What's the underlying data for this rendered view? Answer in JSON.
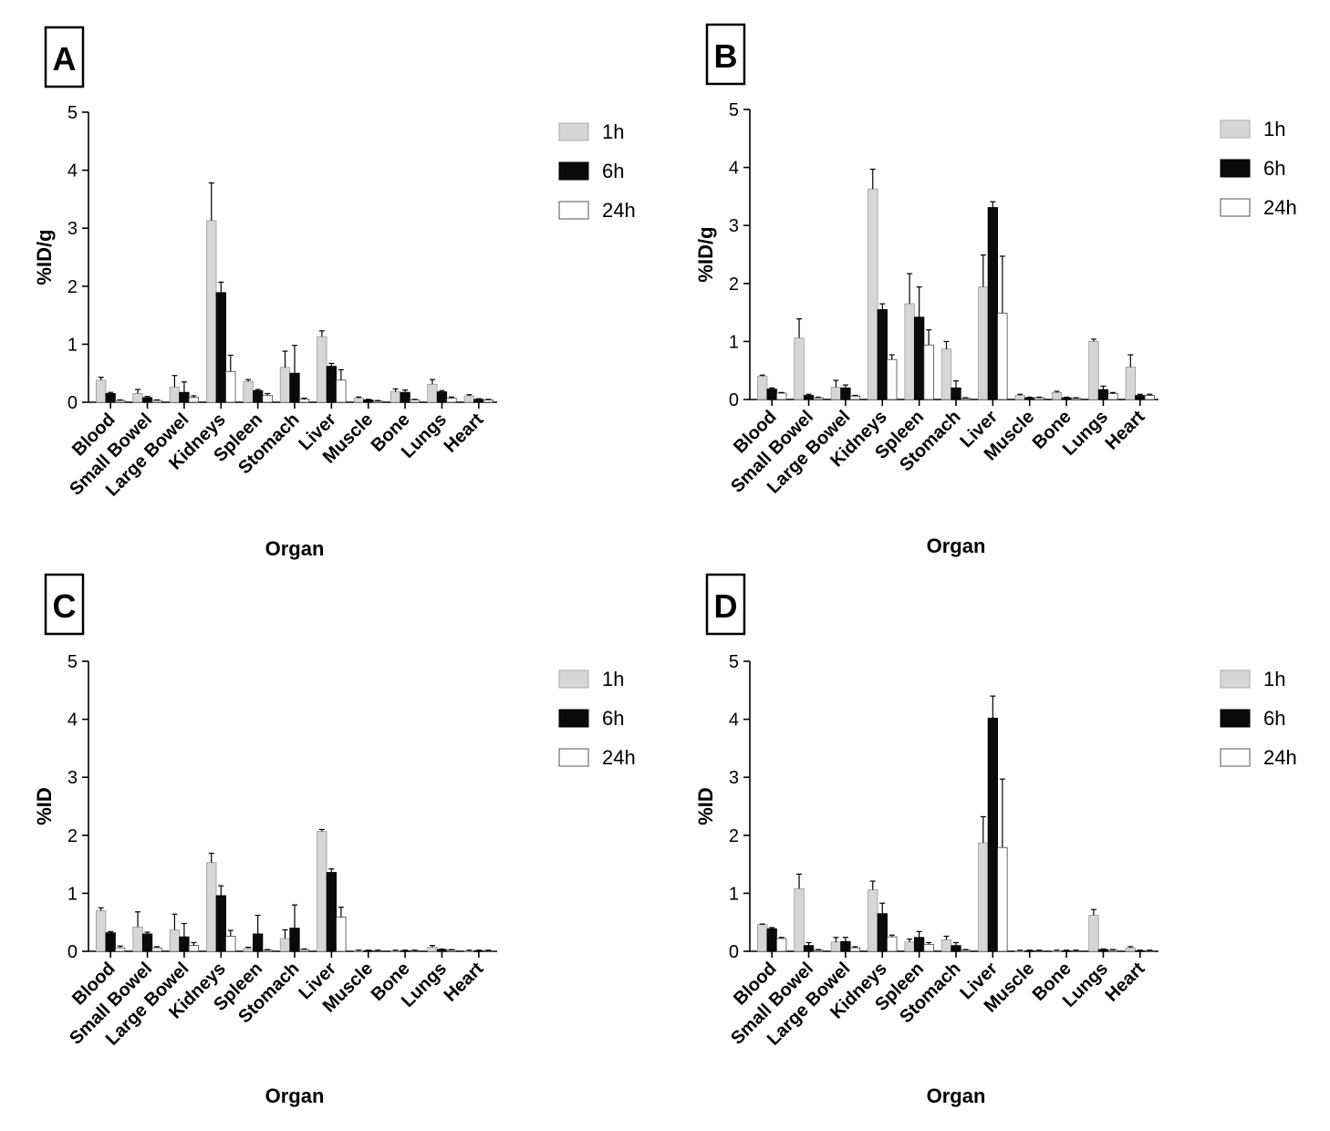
{
  "colors": {
    "1h": "#d6d6d6",
    "6h": "#0a0a0a",
    "24h": "#ffffff",
    "axis": "#000000"
  },
  "chart_data": [
    {
      "panel": "A",
      "type": "bar",
      "title": "",
      "xlabel": "Organ",
      "ylabel": "%ID/g",
      "ylim": [
        0,
        5
      ],
      "yticks": [
        "0",
        "1",
        "2",
        "3",
        "4",
        "5"
      ],
      "legend_position": "top-right",
      "categories": [
        "Blood",
        "Small Bowel",
        "Large Bowel",
        "Kidneys",
        "Spleen",
        "Stomach",
        "Liver",
        "Muscle",
        "Bone",
        "Lungs",
        "Heart"
      ],
      "series": [
        {
          "name": "1h",
          "values": [
            0.38,
            0.15,
            0.26,
            3.13,
            0.36,
            0.6,
            1.13,
            0.07,
            0.18,
            0.31,
            0.11
          ],
          "errors": [
            0.05,
            0.07,
            0.2,
            0.65,
            0.03,
            0.28,
            0.1,
            0.02,
            0.05,
            0.08,
            0.02
          ]
        },
        {
          "name": "6h",
          "values": [
            0.15,
            0.08,
            0.17,
            1.89,
            0.2,
            0.5,
            0.62,
            0.04,
            0.17,
            0.18,
            0.05
          ],
          "errors": [
            0.02,
            0.02,
            0.18,
            0.18,
            0.02,
            0.48,
            0.05,
            0.01,
            0.04,
            0.02,
            0.01
          ]
        },
        {
          "name": "24h",
          "values": [
            0.03,
            0.03,
            0.08,
            0.53,
            0.12,
            0.05,
            0.38,
            0.02,
            0.04,
            0.07,
            0.04
          ],
          "errors": [
            0.01,
            0.01,
            0.03,
            0.28,
            0.03,
            0.02,
            0.18,
            0.01,
            0.01,
            0.02,
            0.01
          ]
        }
      ]
    },
    {
      "panel": "B",
      "type": "bar",
      "title": "",
      "xlabel": "Organ",
      "ylabel": "%ID/g",
      "ylim": [
        0,
        5
      ],
      "yticks": [
        "0",
        "1",
        "2",
        "3",
        "4",
        "5"
      ],
      "legend_position": "top-right",
      "categories": [
        "Blood",
        "Small Bowel",
        "Large Bowel",
        "Kidneys",
        "Spleen",
        "Stomach",
        "Liver",
        "Muscle",
        "Bone",
        "Lungs",
        "Heart"
      ],
      "series": [
        {
          "name": "1h",
          "values": [
            0.4,
            1.06,
            0.21,
            3.63,
            1.65,
            0.87,
            1.94,
            0.07,
            0.12,
            1.0,
            0.56
          ],
          "errors": [
            0.02,
            0.33,
            0.12,
            0.34,
            0.52,
            0.13,
            0.55,
            0.02,
            0.02,
            0.04,
            0.21
          ]
        },
        {
          "name": "6h",
          "values": [
            0.18,
            0.07,
            0.2,
            1.55,
            1.42,
            0.2,
            3.31,
            0.03,
            0.03,
            0.17,
            0.07
          ],
          "errors": [
            0.02,
            0.02,
            0.05,
            0.1,
            0.52,
            0.12,
            0.1,
            0.01,
            0.01,
            0.06,
            0.02
          ]
        },
        {
          "name": "24h",
          "values": [
            0.11,
            0.03,
            0.06,
            0.69,
            0.94,
            0.02,
            1.49,
            0.03,
            0.02,
            0.1,
            0.07
          ],
          "errors": [
            0.01,
            0.01,
            0.01,
            0.08,
            0.26,
            0.01,
            0.98,
            0.01,
            0.01,
            0.02,
            0.02
          ]
        }
      ]
    },
    {
      "panel": "C",
      "type": "bar",
      "title": "",
      "xlabel": "Organ",
      "ylabel": "%ID",
      "ylim": [
        0,
        5
      ],
      "yticks": [
        "0",
        "1",
        "2",
        "3",
        "4",
        "5"
      ],
      "legend_position": "top-right",
      "categories": [
        "Blood",
        "Small Bowel",
        "Large Bowel",
        "Kidneys",
        "Spleen",
        "Stomach",
        "Liver",
        "Muscle",
        "Bone",
        "Lungs",
        "Heart"
      ],
      "series": [
        {
          "name": "1h",
          "values": [
            0.7,
            0.42,
            0.37,
            1.53,
            0.05,
            0.22,
            2.07,
            0.01,
            0.01,
            0.07,
            0.01
          ],
          "errors": [
            0.05,
            0.26,
            0.27,
            0.16,
            0.02,
            0.15,
            0.03,
            0.01,
            0.01,
            0.03,
            0.01
          ]
        },
        {
          "name": "6h",
          "values": [
            0.32,
            0.3,
            0.25,
            0.96,
            0.3,
            0.4,
            1.36,
            0.01,
            0.01,
            0.03,
            0.01
          ],
          "errors": [
            0.02,
            0.03,
            0.23,
            0.17,
            0.32,
            0.4,
            0.06,
            0.01,
            0.01,
            0.01,
            0.01
          ]
        },
        {
          "name": "24h",
          "values": [
            0.06,
            0.06,
            0.1,
            0.26,
            0.02,
            0.03,
            0.59,
            0.01,
            0.01,
            0.02,
            0.01
          ],
          "errors": [
            0.03,
            0.02,
            0.05,
            0.1,
            0.01,
            0.01,
            0.17,
            0.01,
            0.01,
            0.01,
            0.01
          ]
        }
      ]
    },
    {
      "panel": "D",
      "type": "bar",
      "title": "",
      "xlabel": "Organ",
      "ylabel": "%ID",
      "ylim": [
        0,
        5
      ],
      "yticks": [
        "0",
        "1",
        "2",
        "3",
        "4",
        "5"
      ],
      "legend_position": "top-right",
      "categories": [
        "Blood",
        "Small Bowel",
        "Large Bowel",
        "Kidneys",
        "Spleen",
        "Stomach",
        "Liver",
        "Muscle",
        "Bone",
        "Lungs",
        "Heart"
      ],
      "series": [
        {
          "name": "1h",
          "values": [
            0.46,
            1.08,
            0.16,
            1.06,
            0.16,
            0.2,
            1.87,
            0.01,
            0.01,
            0.62,
            0.06
          ],
          "errors": [
            0.01,
            0.25,
            0.08,
            0.15,
            0.05,
            0.06,
            0.45,
            0.01,
            0.01,
            0.1,
            0.02
          ]
        },
        {
          "name": "6h",
          "values": [
            0.39,
            0.1,
            0.17,
            0.65,
            0.24,
            0.1,
            4.02,
            0.01,
            0.01,
            0.03,
            0.01
          ],
          "errors": [
            0.02,
            0.05,
            0.07,
            0.18,
            0.1,
            0.05,
            0.38,
            0.01,
            0.01,
            0.01,
            0.01
          ]
        },
        {
          "name": "24h",
          "values": [
            0.22,
            0.02,
            0.06,
            0.25,
            0.12,
            0.02,
            1.79,
            0.01,
            0.01,
            0.02,
            0.01
          ],
          "errors": [
            0.02,
            0.01,
            0.02,
            0.03,
            0.03,
            0.01,
            1.18,
            0.01,
            0.01,
            0.01,
            0.01
          ]
        }
      ]
    }
  ]
}
